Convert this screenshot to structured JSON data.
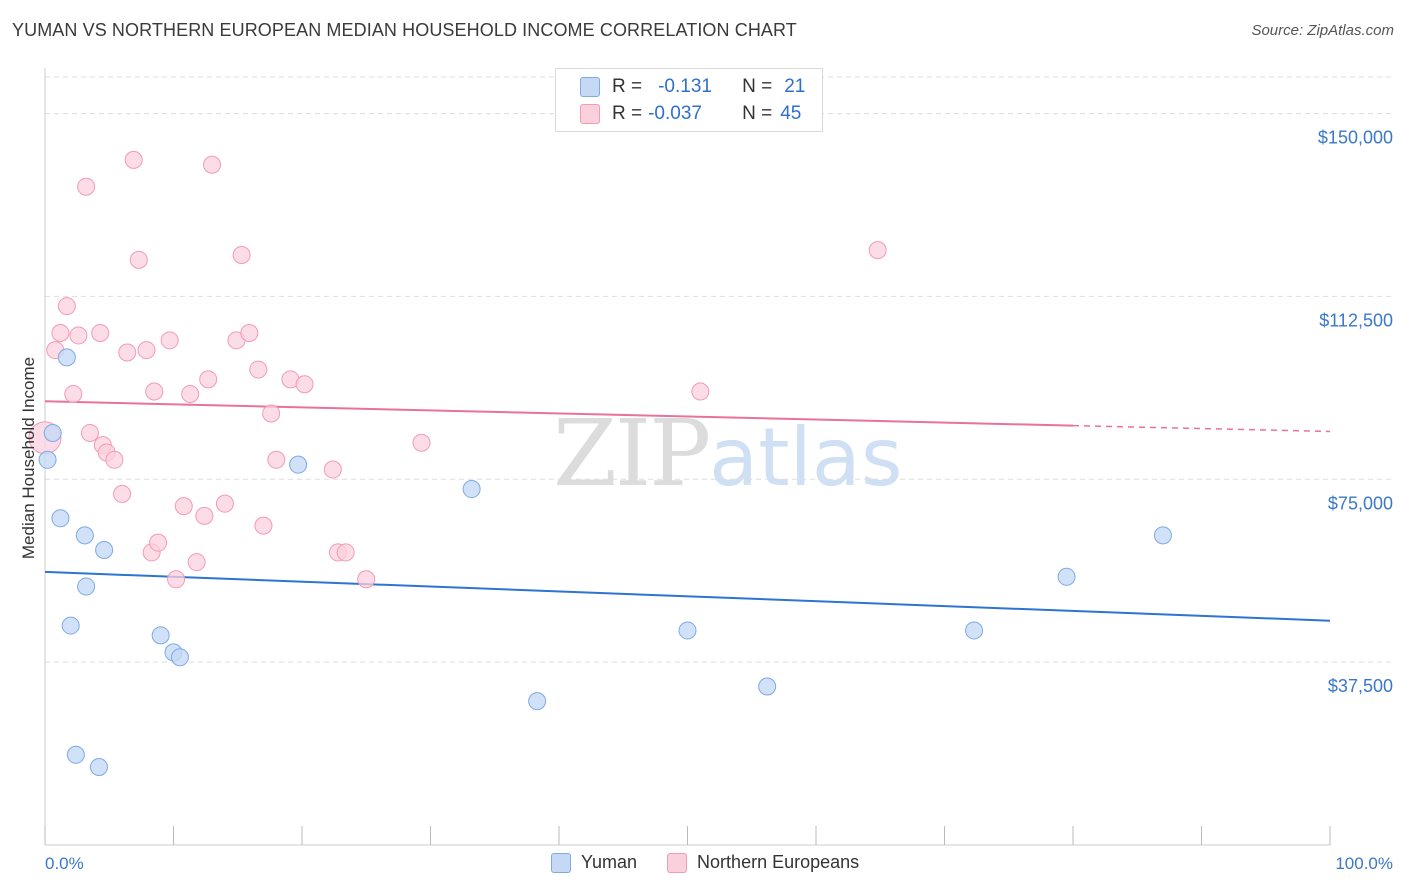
{
  "title": "YUMAN VS NORTHERN EUROPEAN MEDIAN HOUSEHOLD INCOME CORRELATION CHART",
  "source": "Source: ZipAtlas.com",
  "watermark": {
    "zip": "ZIP",
    "atlas": "atlas"
  },
  "legend_top": [
    {
      "r_label": "R =",
      "r_value": "-0.131",
      "n_label": "N =",
      "n_value": "21"
    },
    {
      "r_label": "R =",
      "r_value": "-0.037",
      "n_label": "N =",
      "n_value": "45"
    }
  ],
  "legend_bottom": [
    "Yuman",
    "Northern Europeans"
  ],
  "colors": {
    "yuman_fill": "#c5d9f5",
    "yuman_stroke": "#7eaae6",
    "yuman_line": "#2e74d1",
    "ne_fill": "#fbd0dd",
    "ne_stroke": "#f29bb4",
    "ne_line": "#e8729a",
    "grid": "#dddddd",
    "tick_text": "#3a78c9"
  },
  "chart_data": {
    "type": "scatter",
    "title": "YUMAN VS NORTHERN EUROPEAN MEDIAN HOUSEHOLD INCOME CORRELATION CHART",
    "xlabel": "",
    "ylabel": "Median Household Income",
    "xlim": [
      0,
      100
    ],
    "ylim": [
      0,
      157500
    ],
    "x_tick_labels": [
      "0.0%",
      "100.0%"
    ],
    "y_ticks": [
      37500,
      75000,
      112500,
      150000
    ],
    "y_tick_labels": [
      "$37,500",
      "$75,000",
      "$112,500",
      "$150,000"
    ],
    "series": [
      {
        "name": "Yuman",
        "r": -0.131,
        "n": 21,
        "points": [
          [
            0.2,
            79000
          ],
          [
            0.6,
            84500
          ],
          [
            1.7,
            100000
          ],
          [
            1.2,
            67000
          ],
          [
            3.1,
            63500
          ],
          [
            4.6,
            60500
          ],
          [
            3.2,
            53000
          ],
          [
            2.0,
            45000
          ],
          [
            9.0,
            43000
          ],
          [
            10.0,
            39500
          ],
          [
            10.5,
            38500
          ],
          [
            19.7,
            78000
          ],
          [
            33.2,
            73000
          ],
          [
            2.4,
            18500
          ],
          [
            4.2,
            16000
          ],
          [
            38.3,
            29500
          ],
          [
            50.0,
            44000
          ],
          [
            56.2,
            32500
          ],
          [
            72.3,
            44000
          ],
          [
            79.5,
            55000
          ],
          [
            87.0,
            63500
          ]
        ],
        "trend": {
          "x": [
            0,
            100
          ],
          "y": [
            56000,
            46000
          ]
        }
      },
      {
        "name": "Northern Europeans",
        "r": -0.037,
        "n": 45,
        "points": [
          [
            0.0,
            83500
          ],
          [
            0.8,
            101500
          ],
          [
            1.2,
            105000
          ],
          [
            1.7,
            110500
          ],
          [
            2.2,
            92500
          ],
          [
            2.6,
            104500
          ],
          [
            3.2,
            135000
          ],
          [
            3.5,
            84500
          ],
          [
            4.3,
            105000
          ],
          [
            4.5,
            82000
          ],
          [
            4.8,
            80500
          ],
          [
            5.4,
            79000
          ],
          [
            6.0,
            72000
          ],
          [
            6.4,
            101000
          ],
          [
            6.9,
            140500
          ],
          [
            7.3,
            120000
          ],
          [
            7.9,
            101500
          ],
          [
            8.3,
            60000
          ],
          [
            8.8,
            62000
          ],
          [
            8.5,
            93000
          ],
          [
            9.7,
            103500
          ],
          [
            10.2,
            54500
          ],
          [
            10.8,
            69500
          ],
          [
            11.3,
            92500
          ],
          [
            11.8,
            58000
          ],
          [
            12.4,
            67500
          ],
          [
            12.7,
            95500
          ],
          [
            13.0,
            139500
          ],
          [
            14.0,
            70000
          ],
          [
            14.9,
            103500
          ],
          [
            15.3,
            121000
          ],
          [
            15.9,
            105000
          ],
          [
            16.6,
            97500
          ],
          [
            17.0,
            65500
          ],
          [
            17.6,
            88500
          ],
          [
            18.0,
            79000
          ],
          [
            19.1,
            95500
          ],
          [
            20.2,
            94500
          ],
          [
            22.4,
            77000
          ],
          [
            22.8,
            60000
          ],
          [
            23.4,
            60000
          ],
          [
            25.0,
            54500
          ],
          [
            29.3,
            82500
          ],
          [
            51.0,
            93000
          ],
          [
            64.8,
            122000
          ]
        ],
        "trend": {
          "x": [
            0,
            80
          ],
          "y": [
            91000,
            86000
          ],
          "dashed_extension": {
            "x": [
              80,
              100
            ],
            "y": [
              86000,
              84800
            ]
          }
        }
      }
    ]
  }
}
